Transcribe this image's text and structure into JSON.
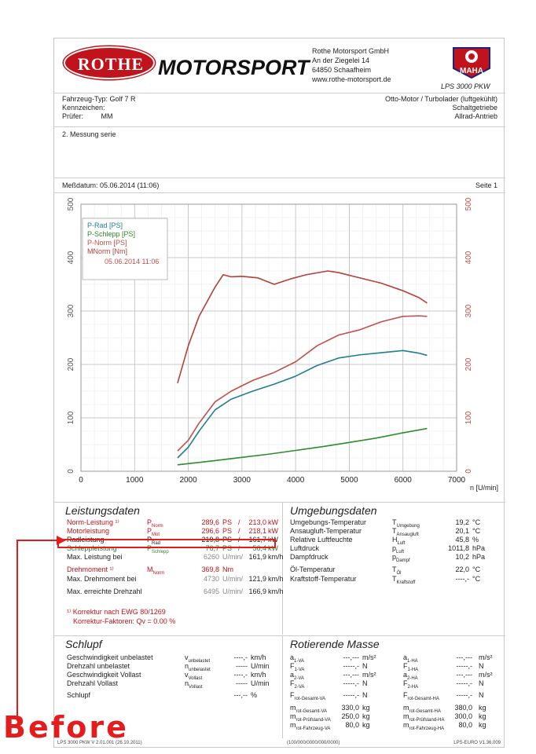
{
  "header": {
    "logo_oval": "ROTHE",
    "logo_word": "MOTORSPORT",
    "company": "Rothe Motorsport GmbH",
    "street": "An der Ziegelei 14",
    "city": "64850 Schaafheim",
    "web": "www.rothe-motorsport.de",
    "maha_logo": "MAHA",
    "maha_model": "LPS 3000 PKW"
  },
  "vehicle": {
    "type_label": "Fahrzeug-Typ:",
    "type_value": "Golf 7 R",
    "plate_label": "Kennzeichen:",
    "plate_value": "",
    "tester_label": "Prüfer:",
    "tester_value": "MM",
    "engine": "Otto-Motor / Turbolader (luftgekühlt)",
    "gearbox": "Schaltgetriebe",
    "drive": "Allrad-Antrieb"
  },
  "note": "2. Messung serie",
  "measure_date": "Meßdatum: 05.06.2014 (11:06)",
  "page": "Seite 1",
  "chart_data": {
    "type": "line",
    "x_unit": "n [U/min]",
    "xlim": [
      0,
      7000
    ],
    "ylim": [
      0,
      500
    ],
    "x_ticks": [
      0,
      1000,
      2000,
      3000,
      4000,
      5000,
      6000,
      7000
    ],
    "y_ticks": [
      0,
      100,
      200,
      300,
      400,
      500
    ],
    "legend": [
      "P-Rad [PS]",
      "P-Schlepp [PS]",
      "P-Norm [PS]",
      "MNorm [Nm]"
    ],
    "legend_date": "05.06.2014 11:06",
    "legend_placement": "top-left",
    "grid": true,
    "series": [
      {
        "name": "P-Rad [PS]",
        "color": "#1f7f8f",
        "x": [
          1800,
          2000,
          2200,
          2500,
          2800,
          3200,
          3600,
          4000,
          4400,
          4800,
          5200,
          5600,
          6000,
          6300,
          6450
        ],
        "y": [
          25,
          45,
          75,
          115,
          135,
          150,
          163,
          178,
          198,
          212,
          218,
          222,
          226,
          221,
          217
        ]
      },
      {
        "name": "P-Schlepp [PS]",
        "color": "#2e8b2e",
        "x": [
          1800,
          2500,
          3000,
          3500,
          4000,
          4500,
          5000,
          5500,
          6000,
          6450
        ],
        "y": [
          12,
          20,
          26,
          32,
          39,
          46,
          54,
          62,
          72,
          80
        ]
      },
      {
        "name": "P-Norm [PS]",
        "color": "#c0504d",
        "x": [
          1800,
          2000,
          2200,
          2500,
          2800,
          3200,
          3600,
          4000,
          4400,
          4800,
          5200,
          5600,
          6000,
          6300,
          6450
        ],
        "y": [
          38,
          58,
          90,
          130,
          150,
          170,
          185,
          205,
          235,
          255,
          265,
          280,
          290,
          291,
          290
        ]
      },
      {
        "name": "MNorm [Nm]",
        "color": "#b3403a",
        "x": [
          1800,
          2000,
          2200,
          2500,
          2650,
          2800,
          3000,
          3300,
          3600,
          3900,
          4200,
          4600,
          4800,
          5200,
          5600,
          6000,
          6300,
          6450
        ],
        "y": [
          165,
          235,
          290,
          345,
          368,
          364,
          365,
          362,
          350,
          360,
          368,
          375,
          372,
          362,
          352,
          338,
          325,
          315
        ]
      }
    ]
  },
  "leistung": {
    "title": "Leistungsdaten",
    "rows": [
      {
        "label": "Norm-Leistung ¹⁾",
        "sym": "PNorm",
        "v1": "289,6",
        "u1": "PS",
        "sep": "/",
        "v2": "213,0",
        "u2": "kW",
        "cls": "red"
      },
      {
        "label": "Motorleistung",
        "sym": "PMot",
        "v1": "296,6",
        "u1": "PS",
        "sep": "/",
        "v2": "218,1",
        "u2": "kW",
        "cls": "red"
      },
      {
        "label": "Radleistung",
        "sym": "PRad",
        "v1": "219,8",
        "u1": "PS",
        "sep": "/",
        "v2": "161,7",
        "u2": "kW",
        "cls": ""
      },
      {
        "label": "Schleppleistung",
        "sym": "PSchlepp",
        "v1": "76,7",
        "u1": "PS",
        "sep": "/",
        "v2": "56,4",
        "u2": "kW",
        "cls": "green"
      },
      {
        "label": "Max. Leistung bei",
        "sym": "",
        "v1": "6260",
        "u1": "U/min/",
        "sep": "",
        "v2": "161,9",
        "u2": "km/h",
        "cls": ""
      },
      {
        "label": "Drehmoment ¹⁾",
        "sym": "MNorm",
        "v1": "369,8",
        "u1": "Nm",
        "sep": "",
        "v2": "",
        "u2": "",
        "cls": "red"
      },
      {
        "label": "Max. Drehmoment bei",
        "sym": "",
        "v1": "4730",
        "u1": "U/min/",
        "sep": "",
        "v2": "121,9",
        "u2": "km/h",
        "cls": ""
      },
      {
        "label": "Max. erreichte Drehzahl",
        "sym": "",
        "v1": "6495",
        "u1": "U/min/",
        "sep": "",
        "v2": "166,9",
        "u2": "km/h",
        "cls": ""
      }
    ],
    "footnote1": "¹⁾ Korrektur nach EWG 80/1269",
    "footnote2": "Korrektur-Faktoren: Qv = 0.00 %"
  },
  "umgebung": {
    "title": "Umgebungsdaten",
    "rows": [
      {
        "label": "Umgebungs-Temperatur",
        "sym": "TUmgebung",
        "v": "19,2",
        "u": "°C"
      },
      {
        "label": "Ansaugluft-Temperatur",
        "sym": "TAnsaugluft",
        "v": "20,1",
        "u": "°C"
      },
      {
        "label": "Relative Luftfeuchte",
        "sym": "HLuft",
        "v": "45,8",
        "u": "%"
      },
      {
        "label": "Luftdruck",
        "sym": "pLuft",
        "v": "1011,8",
        "u": "hPa"
      },
      {
        "label": "Dampfdruck",
        "sym": "pDampf",
        "v": "10,2",
        "u": "hPa"
      },
      {
        "label": "Öl-Temperatur",
        "sym": "TÖl",
        "v": "22,0",
        "u": "°C"
      },
      {
        "label": "Kraftstoff-Temperatur",
        "sym": "TKraftstoff",
        "v": "----,-",
        "u": "°C"
      }
    ]
  },
  "schlupf": {
    "title": "Schlupf",
    "rows": [
      {
        "label": "Geschwindigkeit unbelastet",
        "sym": "vunbelastet",
        "v": "----,-",
        "u": "km/h"
      },
      {
        "label": "Drehzahl unbelastet",
        "sym": "nunbelastet",
        "v": "-----",
        "u": "U/min"
      },
      {
        "label": "Geschwindigkeit Vollast",
        "sym": "vVollast",
        "v": "----,-",
        "u": "km/h"
      },
      {
        "label": "Drehzahl Vollast",
        "sym": "nVollast",
        "v": "-----",
        "u": "U/min"
      },
      {
        "label": "Schlupf",
        "sym": "",
        "v": "---,--",
        "u": "%"
      }
    ]
  },
  "rotierend": {
    "title": "Rotierende Masse",
    "left": [
      {
        "sym": "a1-VA",
        "v": "---,---",
        "u": "m/s²"
      },
      {
        "sym": "F1-VA",
        "v": "-----,-",
        "u": "N"
      },
      {
        "sym": "a2-VA",
        "v": "---,---",
        "u": "m/s²"
      },
      {
        "sym": "F2-VA",
        "v": "-----,-",
        "u": "N"
      },
      {
        "sym": "Frot-Gesamt-VA",
        "v": "-----,-",
        "u": "N"
      },
      {
        "sym": "mrot-Gesamt-VA",
        "v": "330,0",
        "u": "kg"
      },
      {
        "sym": "mrot-Prüfstand-VA",
        "v": "250,0",
        "u": "kg"
      },
      {
        "sym": "mrot-Fahrzeug-VA",
        "v": "80,0",
        "u": "kg"
      }
    ],
    "right": [
      {
        "sym": "a1-HA",
        "v": "---,---",
        "u": "m/s²"
      },
      {
        "sym": "F1-HA",
        "v": "-----,-",
        "u": "N"
      },
      {
        "sym": "a2-HA",
        "v": "---,---",
        "u": "m/s²"
      },
      {
        "sym": "F2-HA",
        "v": "-----,-",
        "u": "N"
      },
      {
        "sym": "Frot-Gesamt-HA",
        "v": "-----,-",
        "u": "N"
      },
      {
        "sym": "mrot-Gesamt-HA",
        "v": "380,0",
        "u": "kg"
      },
      {
        "sym": "mrot-Prüfstand-HA",
        "v": "300,0",
        "u": "kg"
      },
      {
        "sym": "mrot-Fahrzeug-HA",
        "v": "80,0",
        "u": "kg"
      }
    ]
  },
  "footer": {
    "left": "LPS 3000 PKW V 2.01.001 (26.10.2011)",
    "mid": "(100/000/0000/000/0000)",
    "right": "LPS-EURO V1.36.009"
  },
  "annotation": {
    "before": "Before",
    "color": "#e41c1c"
  }
}
